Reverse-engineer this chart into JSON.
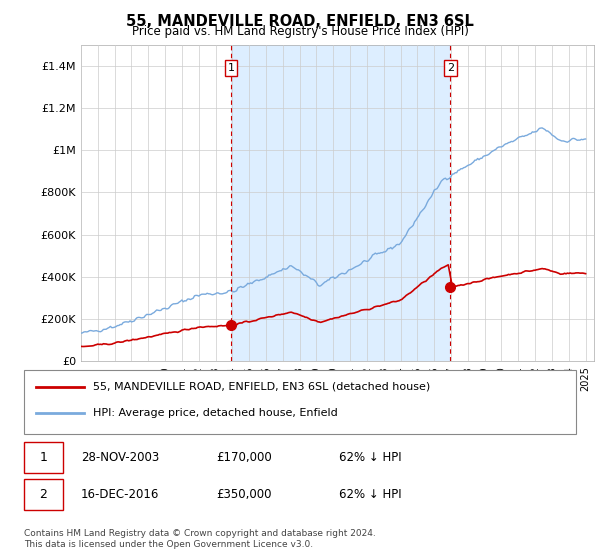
{
  "title": "55, MANDEVILLE ROAD, ENFIELD, EN3 6SL",
  "subtitle": "Price paid vs. HM Land Registry's House Price Index (HPI)",
  "ylabel_ticks": [
    "£0",
    "£200K",
    "£400K",
    "£600K",
    "£800K",
    "£1M",
    "£1.2M",
    "£1.4M"
  ],
  "ytick_values": [
    0,
    200000,
    400000,
    600000,
    800000,
    1000000,
    1200000,
    1400000
  ],
  "ylim": [
    0,
    1500000
  ],
  "xlim_start": 1995.0,
  "xlim_end": 2025.5,
  "transaction1_date": 2003.91,
  "transaction1_price": 170000,
  "transaction1_label": "1",
  "transaction2_date": 2016.96,
  "transaction2_price": 350000,
  "transaction2_label": "2",
  "red_color": "#cc0000",
  "blue_color": "#7aaadd",
  "shade_color": "#ddeeff",
  "vline_color": "#cc0000",
  "grid_color": "#cccccc",
  "background_color": "#f0f0f0",
  "plot_bg_color": "#ffffff",
  "legend_line1": "55, MANDEVILLE ROAD, ENFIELD, EN3 6SL (detached house)",
  "legend_line2": "HPI: Average price, detached house, Enfield",
  "footer": "Contains HM Land Registry data © Crown copyright and database right 2024.\nThis data is licensed under the Open Government Licence v3.0."
}
